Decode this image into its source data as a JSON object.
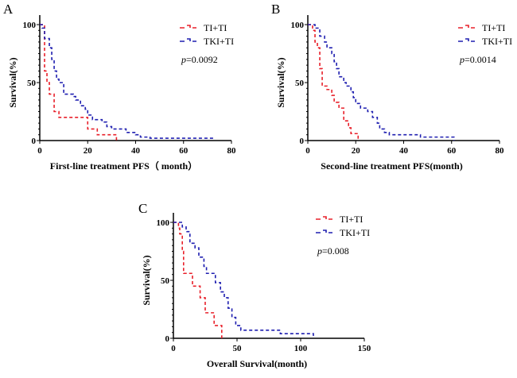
{
  "colors": {
    "TI+TI": "#e8202a",
    "TKI+TI": "#1f1fb0"
  },
  "chart_data": [
    {
      "type": "line",
      "step": true,
      "panel_label": "A",
      "xlabel": "First-line treatment PFS（ month）",
      "ylabel": "Survival(%)",
      "xlim": [
        0,
        80
      ],
      "ylim": [
        0,
        100
      ],
      "xticks": [
        0,
        20,
        40,
        60,
        80
      ],
      "yticks": [
        0,
        50,
        100
      ],
      "legend": "top-right",
      "grid": false,
      "annotation": "=0.0092",
      "annotation_italic": "p",
      "series": [
        {
          "name": "TI+TI",
          "x": [
            0,
            2,
            3,
            4,
            6,
            8,
            20,
            24,
            32
          ],
          "y": [
            100,
            60,
            50,
            40,
            25,
            20,
            10,
            5,
            0
          ]
        },
        {
          "name": "TKI+TI",
          "x": [
            0,
            1,
            2,
            4,
            5,
            6,
            7,
            8,
            10,
            14,
            15,
            17,
            19,
            20,
            22,
            26,
            28,
            30,
            36,
            40,
            42,
            46,
            73
          ],
          "y": [
            100,
            97,
            88,
            80,
            70,
            60,
            53,
            50,
            40,
            38,
            35,
            30,
            27,
            22,
            18,
            16,
            12,
            10,
            7,
            5,
            3,
            2,
            2
          ]
        }
      ]
    },
    {
      "type": "line",
      "step": true,
      "panel_label": "B",
      "xlabel": "Second-line treatment PFS(month)",
      "ylabel": "Survival(%)",
      "xlim": [
        0,
        80
      ],
      "ylim": [
        0,
        100
      ],
      "xticks": [
        0,
        20,
        40,
        60,
        80
      ],
      "yticks": [
        0,
        50,
        100
      ],
      "legend": "top-right",
      "grid": false,
      "annotation": "=0.0014",
      "annotation_italic": "p",
      "series": [
        {
          "name": "TI+TI",
          "x": [
            0,
            2,
            3,
            4,
            5,
            6,
            8,
            10,
            11,
            13,
            15,
            17,
            18,
            21
          ],
          "y": [
            100,
            95,
            85,
            80,
            62,
            47,
            44,
            39,
            33,
            28,
            17,
            11,
            6,
            0
          ]
        },
        {
          "name": "TKI+TI",
          "x": [
            0,
            3,
            5,
            7,
            8,
            10,
            11,
            12,
            13,
            15,
            16,
            18,
            19,
            20,
            22,
            25,
            27,
            29,
            30,
            32,
            34,
            47,
            61
          ],
          "y": [
            100,
            97,
            90,
            85,
            80,
            75,
            68,
            62,
            55,
            50,
            47,
            42,
            37,
            32,
            28,
            25,
            20,
            15,
            10,
            7,
            5,
            3,
            0
          ]
        }
      ]
    },
    {
      "type": "line",
      "step": true,
      "panel_label": "C",
      "xlabel": "Overall Survival(month)",
      "ylabel": "Survival(%)",
      "xlim": [
        0,
        150
      ],
      "ylim": [
        0,
        100
      ],
      "xticks": [
        0,
        50,
        100,
        150
      ],
      "yticks": [
        0,
        50,
        100
      ],
      "legend": "top-right",
      "grid": false,
      "annotation": "=0.008",
      "annotation_italic": "p",
      "series": [
        {
          "name": "TI+TI",
          "x": [
            0,
            4,
            5,
            7,
            8,
            15,
            21,
            25,
            32,
            38
          ],
          "y": [
            100,
            95,
            90,
            75,
            56,
            45,
            35,
            22,
            11,
            0
          ]
        },
        {
          "name": "TKI+TI",
          "x": [
            0,
            7,
            10,
            13,
            17,
            20,
            24,
            26,
            33,
            37,
            40,
            43,
            46,
            49,
            53,
            84,
            110
          ],
          "y": [
            100,
            96,
            92,
            82,
            78,
            70,
            62,
            56,
            48,
            40,
            35,
            26,
            18,
            11,
            7,
            4,
            0
          ]
        }
      ]
    }
  ]
}
